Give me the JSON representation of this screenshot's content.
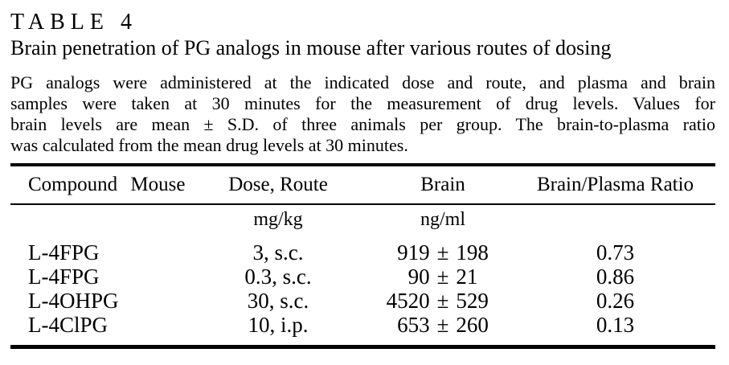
{
  "label": "TABLE 4",
  "title": "Brain penetration of PG analogs in mouse after various routes of dosing",
  "description": {
    "lines": [
      "PG analogs were administered at the indicated dose and route, and plasma and brain",
      "samples were taken at 30 minutes for the measurement of drug levels. Values for",
      "brain levels are mean ± S.D. of three animals per group. The brain-to-plasma ratio",
      "was calculated from the mean drug levels at 30 minutes."
    ]
  },
  "table": {
    "columns": [
      "Compound Mouse",
      "Dose, Route",
      "Brain",
      "Brain/Plasma Ratio"
    ],
    "units": {
      "dose": "mg/kg",
      "brain": "ng/ml"
    },
    "rows": [
      {
        "compound": "L-4FPG",
        "dose": "3, s.c.",
        "brain_mean": "919",
        "pm": "±",
        "brain_sd": "198",
        "ratio": "0.73"
      },
      {
        "compound": "L-4FPG",
        "dose": "0.3, s.c.",
        "brain_mean": "90",
        "pm": "±",
        "brain_sd": "21",
        "ratio": "0.86"
      },
      {
        "compound": "L-4OHPG",
        "dose": "30, s.c.",
        "brain_mean": "4520",
        "pm": "±",
        "brain_sd": "529",
        "ratio": "0.26"
      },
      {
        "compound": "L-4ClPG",
        "dose": "10, i.p.",
        "brain_mean": "653",
        "pm": "±",
        "brain_sd": "260",
        "ratio": "0.13"
      }
    ]
  },
  "colors": {
    "text": "#000000",
    "background": "#ffffff"
  }
}
